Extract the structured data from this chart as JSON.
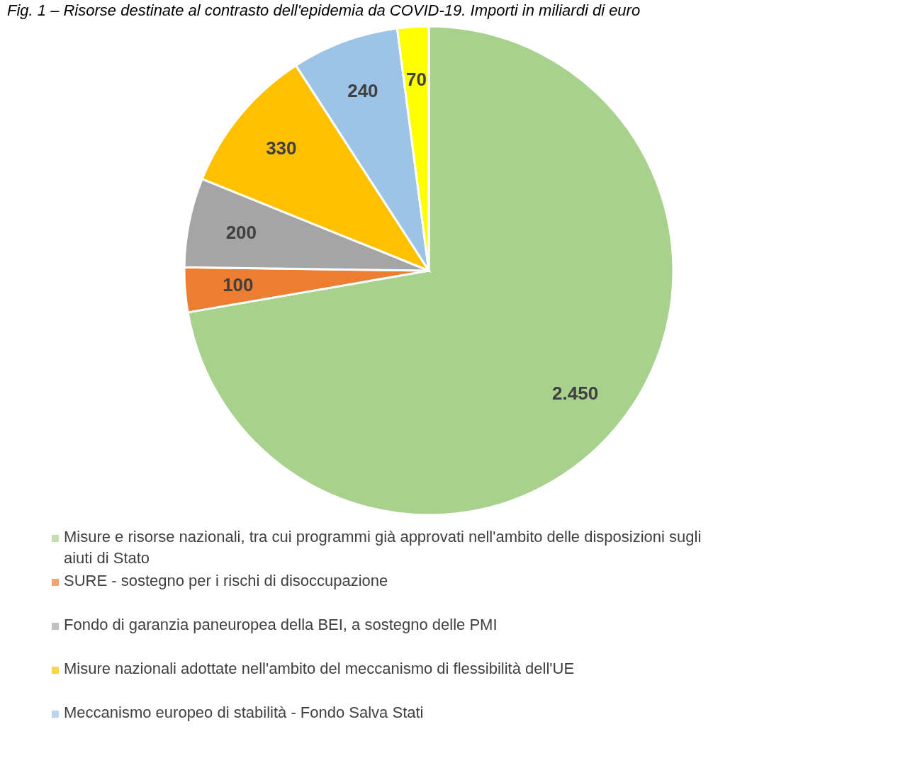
{
  "chart_data": {
    "type": "pie",
    "title": "Fig. 1 – Risorse destinate al contrasto dell'epidemia da COVID-19. Importi in miliardi di euro",
    "categories": [
      "Misure e risorse nazionali, tra cui programmi già approvati nell'ambito delle disposizioni sugli aiuti di Stato",
      "SURE - sostegno per i rischi di disoccupazione",
      "Fondo di garanzia paneuropea della BEI, a sostegno delle PMI",
      "Misure nazionali adottate nell'ambito del meccanismo di flessibilità dell'UE",
      "Meccanismo europeo di stabilità - Fondo Salva Stati",
      null
    ],
    "values": [
      2450,
      100,
      200,
      330,
      240,
      70
    ],
    "value_labels": [
      "2.450",
      "100",
      "200",
      "330",
      "240",
      "70"
    ],
    "colors": [
      "#a9d18e",
      "#ed7d31",
      "#a5a5a5",
      "#ffc000",
      "#9dc3e6",
      "#ffff00"
    ],
    "legend": "bottom"
  }
}
